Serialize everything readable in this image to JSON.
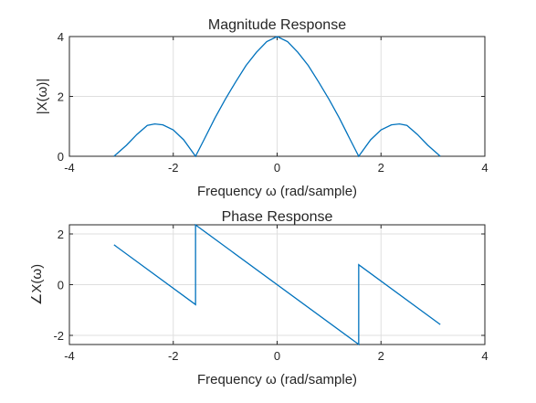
{
  "chart_data": [
    {
      "type": "line",
      "title": "Magnitude Response",
      "xlabel": "Frequency  ω  (rad/sample)",
      "ylabel": "|X(ω)|",
      "xlim": [
        -4,
        4
      ],
      "ylim": [
        0,
        4
      ],
      "xticks": [
        "-4",
        "-2",
        "0",
        "2",
        "4"
      ],
      "yticks": [
        "0",
        "2",
        "4"
      ],
      "grid": true,
      "series": [
        {
          "color": "#0072bd",
          "x": [
            -3.1416,
            -2.9,
            -2.7,
            -2.5,
            -2.356,
            -2.2,
            -2.0,
            -1.8,
            -1.5708,
            -1.4,
            -1.2,
            -1.0,
            -0.8,
            -0.6,
            -0.4,
            -0.2,
            0.0,
            0.2,
            0.4,
            0.6,
            0.8,
            1.0,
            1.2,
            1.4,
            1.5708,
            1.8,
            2.0,
            2.2,
            2.356,
            2.5,
            2.7,
            2.9,
            3.1416
          ],
          "y": [
            0.0,
            0.37,
            0.73,
            1.03,
            1.08,
            1.05,
            0.88,
            0.55,
            0.0,
            0.58,
            1.27,
            1.9,
            2.48,
            3.03,
            3.47,
            3.83,
            4.0,
            3.83,
            3.47,
            3.03,
            2.48,
            1.9,
            1.27,
            0.58,
            0.0,
            0.55,
            0.88,
            1.05,
            1.08,
            1.03,
            0.73,
            0.37,
            0.0
          ]
        }
      ]
    },
    {
      "type": "line",
      "title": "Phase Response",
      "xlabel": "Frequency  ω  (rad/sample)",
      "ylabel": "∠X(ω)",
      "xlim": [
        -4,
        4
      ],
      "ylim": [
        -2.36,
        2.36
      ],
      "xticks": [
        "-4",
        "-2",
        "0",
        "2",
        "4"
      ],
      "yticks": [
        "-2",
        "0",
        "2"
      ],
      "grid": true,
      "series": [
        {
          "color": "#0072bd",
          "x": [
            -3.1416,
            -1.5708,
            -1.5708,
            1.5708,
            1.5708,
            3.1416
          ],
          "y": [
            1.5708,
            -0.7854,
            2.3562,
            -2.3562,
            0.7854,
            -1.5708
          ]
        }
      ]
    }
  ]
}
